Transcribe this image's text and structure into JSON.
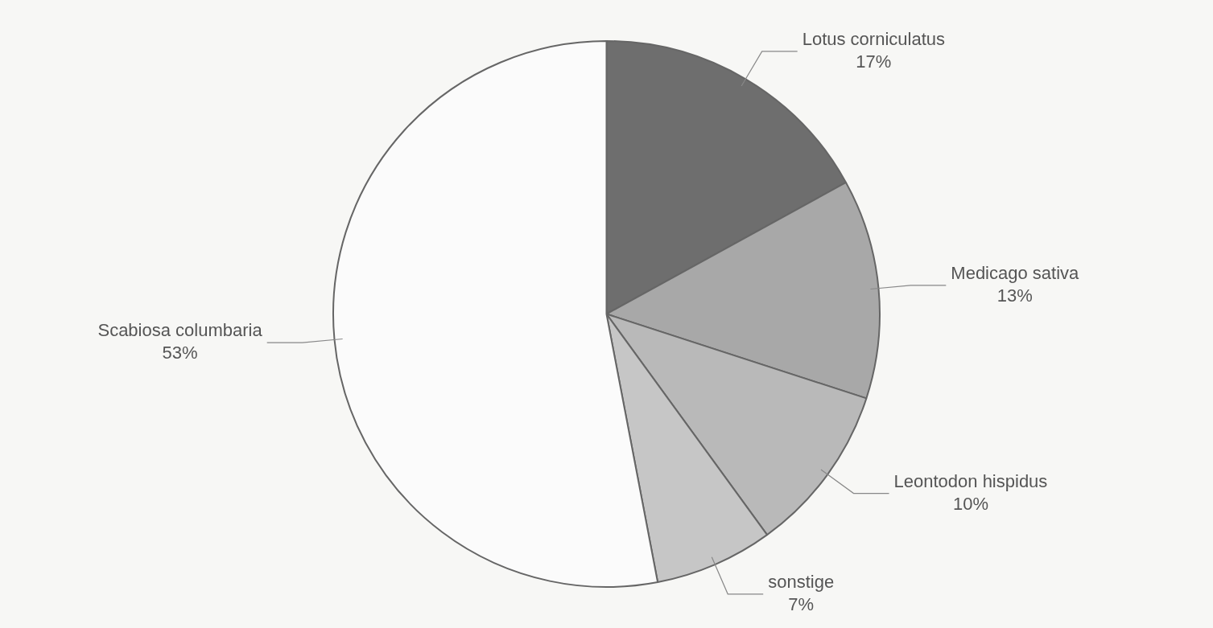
{
  "chart_data": {
    "type": "pie",
    "categories": [
      "Lotus corniculatus",
      "Medicago sativa",
      "Leontodon hispidus",
      "sonstige",
      "Scabiosa columbaria"
    ],
    "values": [
      17,
      13,
      10,
      7,
      53
    ],
    "colors": [
      "#6e6e6e",
      "#a8a8a8",
      "#b9b9b9",
      "#c6c6c6",
      "#fbfbfb"
    ],
    "value_labels": [
      "17%",
      "13%",
      "10%",
      "7%",
      "53%"
    ],
    "legend": false
  }
}
